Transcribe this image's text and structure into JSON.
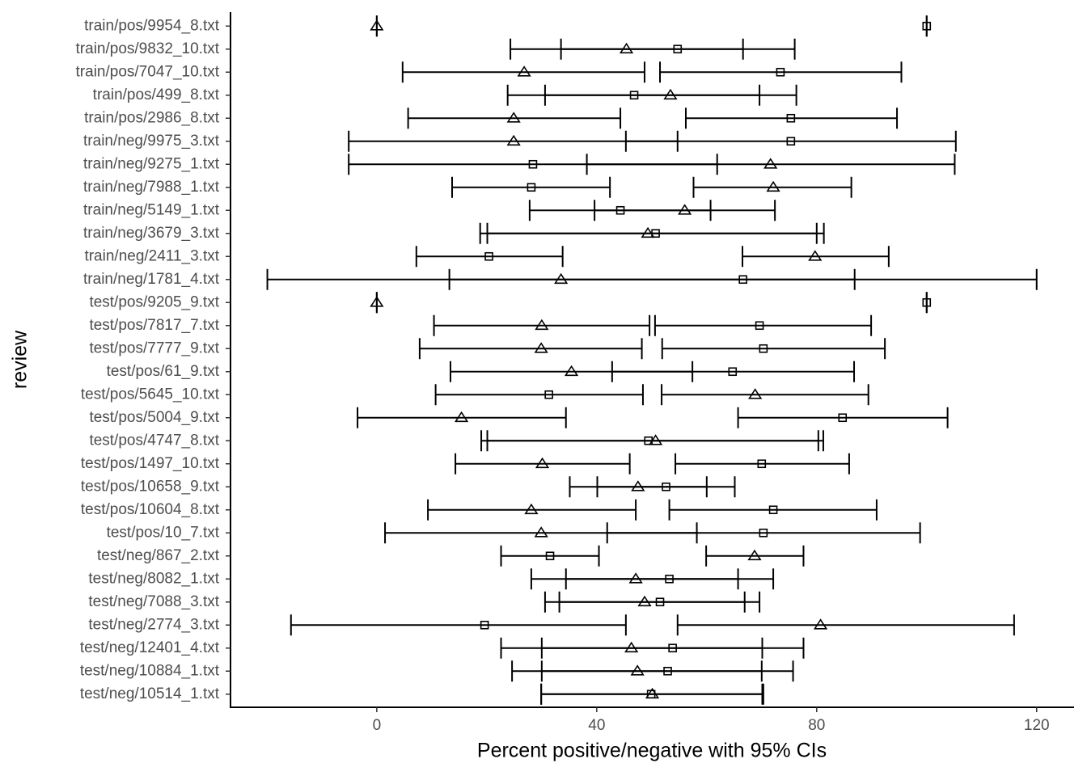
{
  "chart_data": {
    "type": "errorbar",
    "x_label": "Percent positive/negative with 95% CIs",
    "y_label": "review",
    "categories": [
      "train/pos/9954_8.txt",
      "train/pos/9832_10.txt",
      "train/pos/7047_10.txt",
      "train/pos/499_8.txt",
      "train/pos/2986_8.txt",
      "train/neg/9975_3.txt",
      "train/neg/9275_1.txt",
      "train/neg/7988_1.txt",
      "train/neg/5149_1.txt",
      "train/neg/3679_3.txt",
      "train/neg/2411_3.txt",
      "train/neg/1781_4.txt",
      "test/pos/9205_9.txt",
      "test/pos/7817_7.txt",
      "test/pos/7777_9.txt",
      "test/pos/61_9.txt",
      "test/pos/5645_10.txt",
      "test/pos/5004_9.txt",
      "test/pos/4747_8.txt",
      "test/pos/1497_10.txt",
      "test/pos/10658_9.txt",
      "test/pos/10604_8.txt",
      "test/pos/10_7.txt",
      "test/neg/867_2.txt",
      "test/neg/8082_1.txt",
      "test/neg/7088_3.txt",
      "test/neg/2774_3.txt",
      "test/neg/12401_4.txt",
      "test/neg/10884_1.txt",
      "test/neg/10514_1.txt"
    ],
    "series": [
      {
        "marker": "triangle",
        "color": "#000000",
        "values": [
          0,
          45.4,
          26.8,
          53.4,
          24.9,
          24.9,
          71.6,
          72.1,
          56.0,
          49.3,
          79.7,
          33.5,
          0,
          30.0,
          29.9,
          35.4,
          68.8,
          15.4,
          50.7,
          30.1,
          47.5,
          28.1,
          29.9,
          68.7,
          47.1,
          48.7,
          80.7,
          46.3,
          47.4,
          50.1
        ],
        "low": [
          0,
          24.3,
          4.7,
          30.6,
          5.7,
          -5.1,
          38.2,
          57.6,
          39.6,
          18.8,
          66.5,
          -19.9,
          0,
          10.4,
          7.8,
          13.4,
          51.8,
          -3.5,
          20.1,
          14.3,
          35.1,
          9.3,
          1.5,
          59.9,
          28.1,
          30.6,
          54.7,
          22.6,
          24.6,
          29.9
        ],
        "high": [
          0,
          66.6,
          48.7,
          76.3,
          44.3,
          54.7,
          105.1,
          86.3,
          72.4,
          80.0,
          93.1,
          86.9,
          0,
          49.6,
          48.2,
          57.4,
          89.4,
          34.4,
          81.2,
          46.0,
          60.0,
          47.1,
          58.2,
          77.6,
          65.7,
          66.9,
          115.9,
          70.1,
          70.0,
          70.3
        ]
      },
      {
        "marker": "square",
        "color": "#000000",
        "values": [
          100,
          54.7,
          73.4,
          46.8,
          75.3,
          75.3,
          28.4,
          28.1,
          44.3,
          50.7,
          20.4,
          66.6,
          100,
          69.6,
          70.3,
          64.7,
          31.3,
          84.7,
          49.4,
          70.0,
          52.6,
          72.1,
          70.3,
          31.5,
          53.2,
          51.5,
          19.6,
          53.8,
          52.9,
          49.9
        ],
        "low": [
          100,
          33.5,
          51.5,
          23.8,
          56.2,
          45.3,
          -5.1,
          13.7,
          27.8,
          20.1,
          7.2,
          13.2,
          100,
          50.6,
          51.9,
          42.8,
          10.7,
          65.7,
          19.0,
          54.3,
          40.1,
          53.2,
          41.9,
          22.6,
          34.4,
          33.2,
          -15.6,
          30.0,
          30.0,
          29.9
        ],
        "high": [
          100,
          76.0,
          95.4,
          69.6,
          94.6,
          105.3,
          61.9,
          42.4,
          60.7,
          81.3,
          33.8,
          120.0,
          100,
          89.9,
          92.4,
          86.8,
          48.4,
          103.8,
          80.3,
          85.9,
          65.1,
          90.9,
          98.8,
          40.4,
          72.1,
          69.6,
          45.3,
          77.6,
          75.7,
          70.1
        ]
      }
    ],
    "xlim": [
      -26.6,
      126.8
    ],
    "xticks": [
      0,
      40,
      80,
      120
    ],
    "grid": false
  }
}
